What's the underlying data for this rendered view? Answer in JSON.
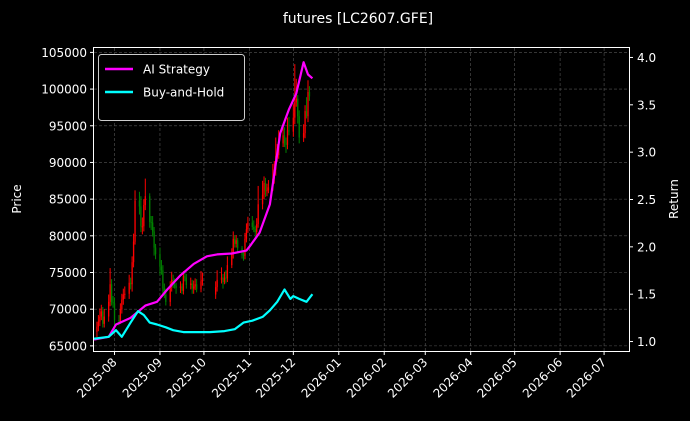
{
  "chart_data": {
    "type": "line",
    "title": "futures [LC2607.GFE]",
    "xlabel": "",
    "ylabel": "Price",
    "ylabel_right": "Return",
    "x_ticks": [
      "2025-08",
      "2025-09",
      "2025-10",
      "2025-11",
      "2025-12",
      "2026-01",
      "2026-02",
      "2026-03",
      "2026-04",
      "2026-05",
      "2026-06",
      "2026-07"
    ],
    "y_ticks_left": [
      "65000",
      "70000",
      "75000",
      "80000",
      "85000",
      "90000",
      "95000",
      "100000",
      "105000"
    ],
    "y_ticks_right": [
      "1.0",
      "1.5",
      "2.0",
      "2.5",
      "3.0",
      "3.5",
      "4.0"
    ],
    "xlim": [
      "2025-07-18",
      "2026-07-18"
    ],
    "ylim_left": [
      64300,
      105600
    ],
    "ylim_right": [
      0.9,
      4.1
    ],
    "grid": true,
    "legend_position": "top-left",
    "legend": [
      "AI Strategy",
      "Buy-and-Hold"
    ],
    "colors": {
      "ai_strategy": "#ff00ff",
      "buy_and_hold": "#00ffff",
      "candle_up": "#ff0000",
      "candle_down": "#008000",
      "grid": "#555555",
      "background": "#000000"
    },
    "series": [
      {
        "name": "AI Strategy",
        "axis": "right",
        "x": [
          "2025-07-18",
          "2025-07-28",
          "2025-08-02",
          "2025-08-12",
          "2025-08-22",
          "2025-08-30",
          "2025-09-06",
          "2025-09-15",
          "2025-09-24",
          "2025-10-03",
          "2025-10-10",
          "2025-10-20",
          "2025-10-30",
          "2025-11-02",
          "2025-11-08",
          "2025-11-15",
          "2025-11-22",
          "2025-11-28",
          "2025-12-03",
          "2025-12-08",
          "2025-12-11",
          "2025-12-14"
        ],
        "values": [
          1.02,
          1.05,
          1.18,
          1.25,
          1.38,
          1.42,
          1.55,
          1.7,
          1.82,
          1.9,
          1.92,
          1.93,
          1.96,
          2.02,
          2.15,
          2.45,
          3.2,
          3.45,
          3.62,
          3.95,
          3.82,
          3.78
        ]
      },
      {
        "name": "Buy-and-Hold",
        "axis": "right",
        "x": [
          "2025-07-18",
          "2025-07-28",
          "2025-08-02",
          "2025-08-06",
          "2025-08-12",
          "2025-08-17",
          "2025-08-21",
          "2025-08-25",
          "2025-08-30",
          "2025-09-05",
          "2025-09-10",
          "2025-09-17",
          "2025-09-25",
          "2025-10-05",
          "2025-10-15",
          "2025-10-22",
          "2025-10-28",
          "2025-11-03",
          "2025-11-10",
          "2025-11-15",
          "2025-11-20",
          "2025-11-25",
          "2025-11-29",
          "2025-12-01",
          "2025-12-05",
          "2025-12-10",
          "2025-12-14"
        ],
        "values": [
          1.03,
          1.05,
          1.12,
          1.05,
          1.2,
          1.32,
          1.28,
          1.2,
          1.18,
          1.15,
          1.12,
          1.1,
          1.1,
          1.1,
          1.11,
          1.13,
          1.2,
          1.22,
          1.26,
          1.33,
          1.42,
          1.55,
          1.45,
          1.48,
          1.45,
          1.42,
          1.5
        ]
      }
    ],
    "candles": {
      "axis": "left",
      "x": [
        "2025-07-20",
        "2025-07-21",
        "2025-07-22",
        "2025-07-23",
        "2025-07-24",
        "2025-07-25",
        "2025-07-28",
        "2025-07-29",
        "2025-07-30",
        "2025-07-31",
        "2025-08-01",
        "2025-08-04",
        "2025-08-05",
        "2025-08-06",
        "2025-08-07",
        "2025-08-08",
        "2025-08-11",
        "2025-08-12",
        "2025-08-13",
        "2025-08-14",
        "2025-08-15",
        "2025-08-18",
        "2025-08-19",
        "2025-08-20",
        "2025-08-21",
        "2025-08-22",
        "2025-08-25",
        "2025-08-26",
        "2025-08-27",
        "2025-08-28",
        "2025-08-29",
        "2025-09-01",
        "2025-09-02",
        "2025-09-03",
        "2025-09-04",
        "2025-09-05",
        "2025-09-08",
        "2025-09-09",
        "2025-09-10",
        "2025-09-11",
        "2025-09-12",
        "2025-09-15",
        "2025-09-16",
        "2025-09-17",
        "2025-09-18",
        "2025-09-19",
        "2025-09-22",
        "2025-09-23",
        "2025-09-24",
        "2025-09-25",
        "2025-09-26",
        "2025-09-29",
        "2025-09-30",
        "2025-10-09",
        "2025-10-10",
        "2025-10-13",
        "2025-10-14",
        "2025-10-15",
        "2025-10-16",
        "2025-10-17",
        "2025-10-20",
        "2025-10-21",
        "2025-10-22",
        "2025-10-23",
        "2025-10-24",
        "2025-10-27",
        "2025-10-28",
        "2025-10-29",
        "2025-10-30",
        "2025-10-31",
        "2025-11-03",
        "2025-11-04",
        "2025-11-05",
        "2025-11-06",
        "2025-11-07",
        "2025-11-10",
        "2025-11-11",
        "2025-11-12",
        "2025-11-13",
        "2025-11-14",
        "2025-11-17",
        "2025-11-18",
        "2025-11-19",
        "2025-11-20",
        "2025-11-21",
        "2025-11-24",
        "2025-11-25",
        "2025-11-26",
        "2025-11-27",
        "2025-11-28",
        "2025-12-01",
        "2025-12-02",
        "2025-12-03",
        "2025-12-04",
        "2025-12-05",
        "2025-12-08",
        "2025-12-09",
        "2025-12-10",
        "2025-12-11",
        "2025-12-12"
      ],
      "open": [
        66900,
        67600,
        68300,
        69000,
        69700,
        68000,
        69000,
        71000,
        73400,
        71000,
        70800,
        68500,
        68300,
        70000,
        71300,
        72000,
        72100,
        73600,
        73400,
        76400,
        79200,
        84800,
        84000,
        81300,
        81300,
        84200,
        85400,
        81900,
        81800,
        80600,
        78400,
        77500,
        75800,
        75300,
        72800,
        72000,
        71000,
        73100,
        74000,
        73400,
        73200,
        72900,
        73100,
        72500,
        74500,
        74300,
        73300,
        73500,
        72800,
        73100,
        73400,
        72700,
        73800,
        72000,
        73000,
        74000,
        74300,
        73700,
        74300,
        74200,
        76000,
        77600,
        79600,
        78900,
        79400,
        78300,
        77400,
        77300,
        79600,
        80900,
        81800,
        81200,
        80900,
        80500,
        81600,
        84300,
        85600,
        87200,
        86100,
        86200,
        86600,
        87800,
        89000,
        90900,
        91000,
        92600,
        93700,
        92700,
        92400,
        94400,
        94200,
        96100,
        98200,
        98700,
        96300,
        93400,
        94000,
        97000,
        96300,
        99600
      ],
      "close": [
        67600,
        68300,
        69000,
        69700,
        68000,
        69000,
        71000,
        73400,
        71000,
        70800,
        68500,
        68300,
        70000,
        71300,
        72000,
        72100,
        73600,
        73400,
        76400,
        79200,
        84800,
        84000,
        81300,
        81300,
        84200,
        85400,
        81900,
        81800,
        80600,
        78400,
        77500,
        75800,
        75300,
        72800,
        72000,
        71000,
        73100,
        74000,
        73400,
        73200,
        72900,
        73100,
        72500,
        74500,
        74300,
        73300,
        73500,
        72800,
        73100,
        73400,
        72700,
        73800,
        74000,
        73000,
        74000,
        74300,
        73700,
        74300,
        74200,
        76000,
        77600,
        79600,
        78900,
        79400,
        78300,
        77400,
        77300,
        79600,
        80900,
        81800,
        81200,
        80900,
        80500,
        81600,
        84300,
        85600,
        87200,
        86100,
        86200,
        86600,
        87800,
        89000,
        90900,
        91000,
        92600,
        93700,
        92700,
        92400,
        94400,
        94200,
        96100,
        98200,
        98700,
        96300,
        93400,
        94000,
        97000,
        96300,
        99600,
        99000
      ],
      "high": [
        68300,
        69200,
        70100,
        70600,
        70300,
        70000,
        72000,
        75600,
        74100,
        71800,
        71600,
        69200,
        70800,
        72100,
        72800,
        73100,
        74700,
        74300,
        77200,
        80300,
        86200,
        86000,
        85400,
        82500,
        85000,
        87800,
        85800,
        82700,
        82700,
        81200,
        78900,
        78400,
        76700,
        76000,
        73500,
        72800,
        73800,
        75100,
        74700,
        74200,
        73600,
        73800,
        73500,
        75200,
        75300,
        74800,
        74300,
        74000,
        73900,
        74200,
        74100,
        75200,
        75000,
        73800,
        75300,
        75700,
        74800,
        75100,
        75300,
        77200,
        78300,
        80600,
        80100,
        80100,
        79700,
        78600,
        78000,
        80400,
        81700,
        82600,
        82700,
        82100,
        81400,
        82400,
        86800,
        87500,
        88100,
        87900,
        87100,
        87600,
        89800,
        90200,
        93400,
        92500,
        94400,
        95000,
        94800,
        93400,
        96100,
        96200,
        97900,
        103400,
        101400,
        99200,
        97100,
        95200,
        97800,
        98900,
        101200,
        100400
      ],
      "low": [
        66200,
        67000,
        67700,
        68500,
        67500,
        67500,
        68300,
        70400,
        70500,
        70200,
        67200,
        67800,
        68000,
        69400,
        70600,
        71400,
        71400,
        72700,
        72400,
        75700,
        78800,
        82900,
        80500,
        80200,
        80600,
        83500,
        81100,
        80800,
        79900,
        77300,
        76800,
        74600,
        74700,
        72100,
        71500,
        70500,
        70400,
        72400,
        72900,
        72800,
        72100,
        72200,
        72100,
        72000,
        73800,
        72800,
        72700,
        72100,
        72100,
        72600,
        72300,
        72300,
        73200,
        71400,
        72400,
        73500,
        72800,
        73400,
        73500,
        73700,
        75600,
        76900,
        78400,
        78400,
        77700,
        76900,
        76600,
        76800,
        79100,
        80400,
        80800,
        80500,
        79900,
        80000,
        81100,
        83600,
        85000,
        85300,
        85400,
        85800,
        86100,
        87100,
        88200,
        90100,
        90500,
        92100,
        92100,
        91300,
        91800,
        93700,
        93500,
        95200,
        97600,
        95300,
        92600,
        92800,
        93300,
        96000,
        95500,
        98400
      ]
    }
  }
}
